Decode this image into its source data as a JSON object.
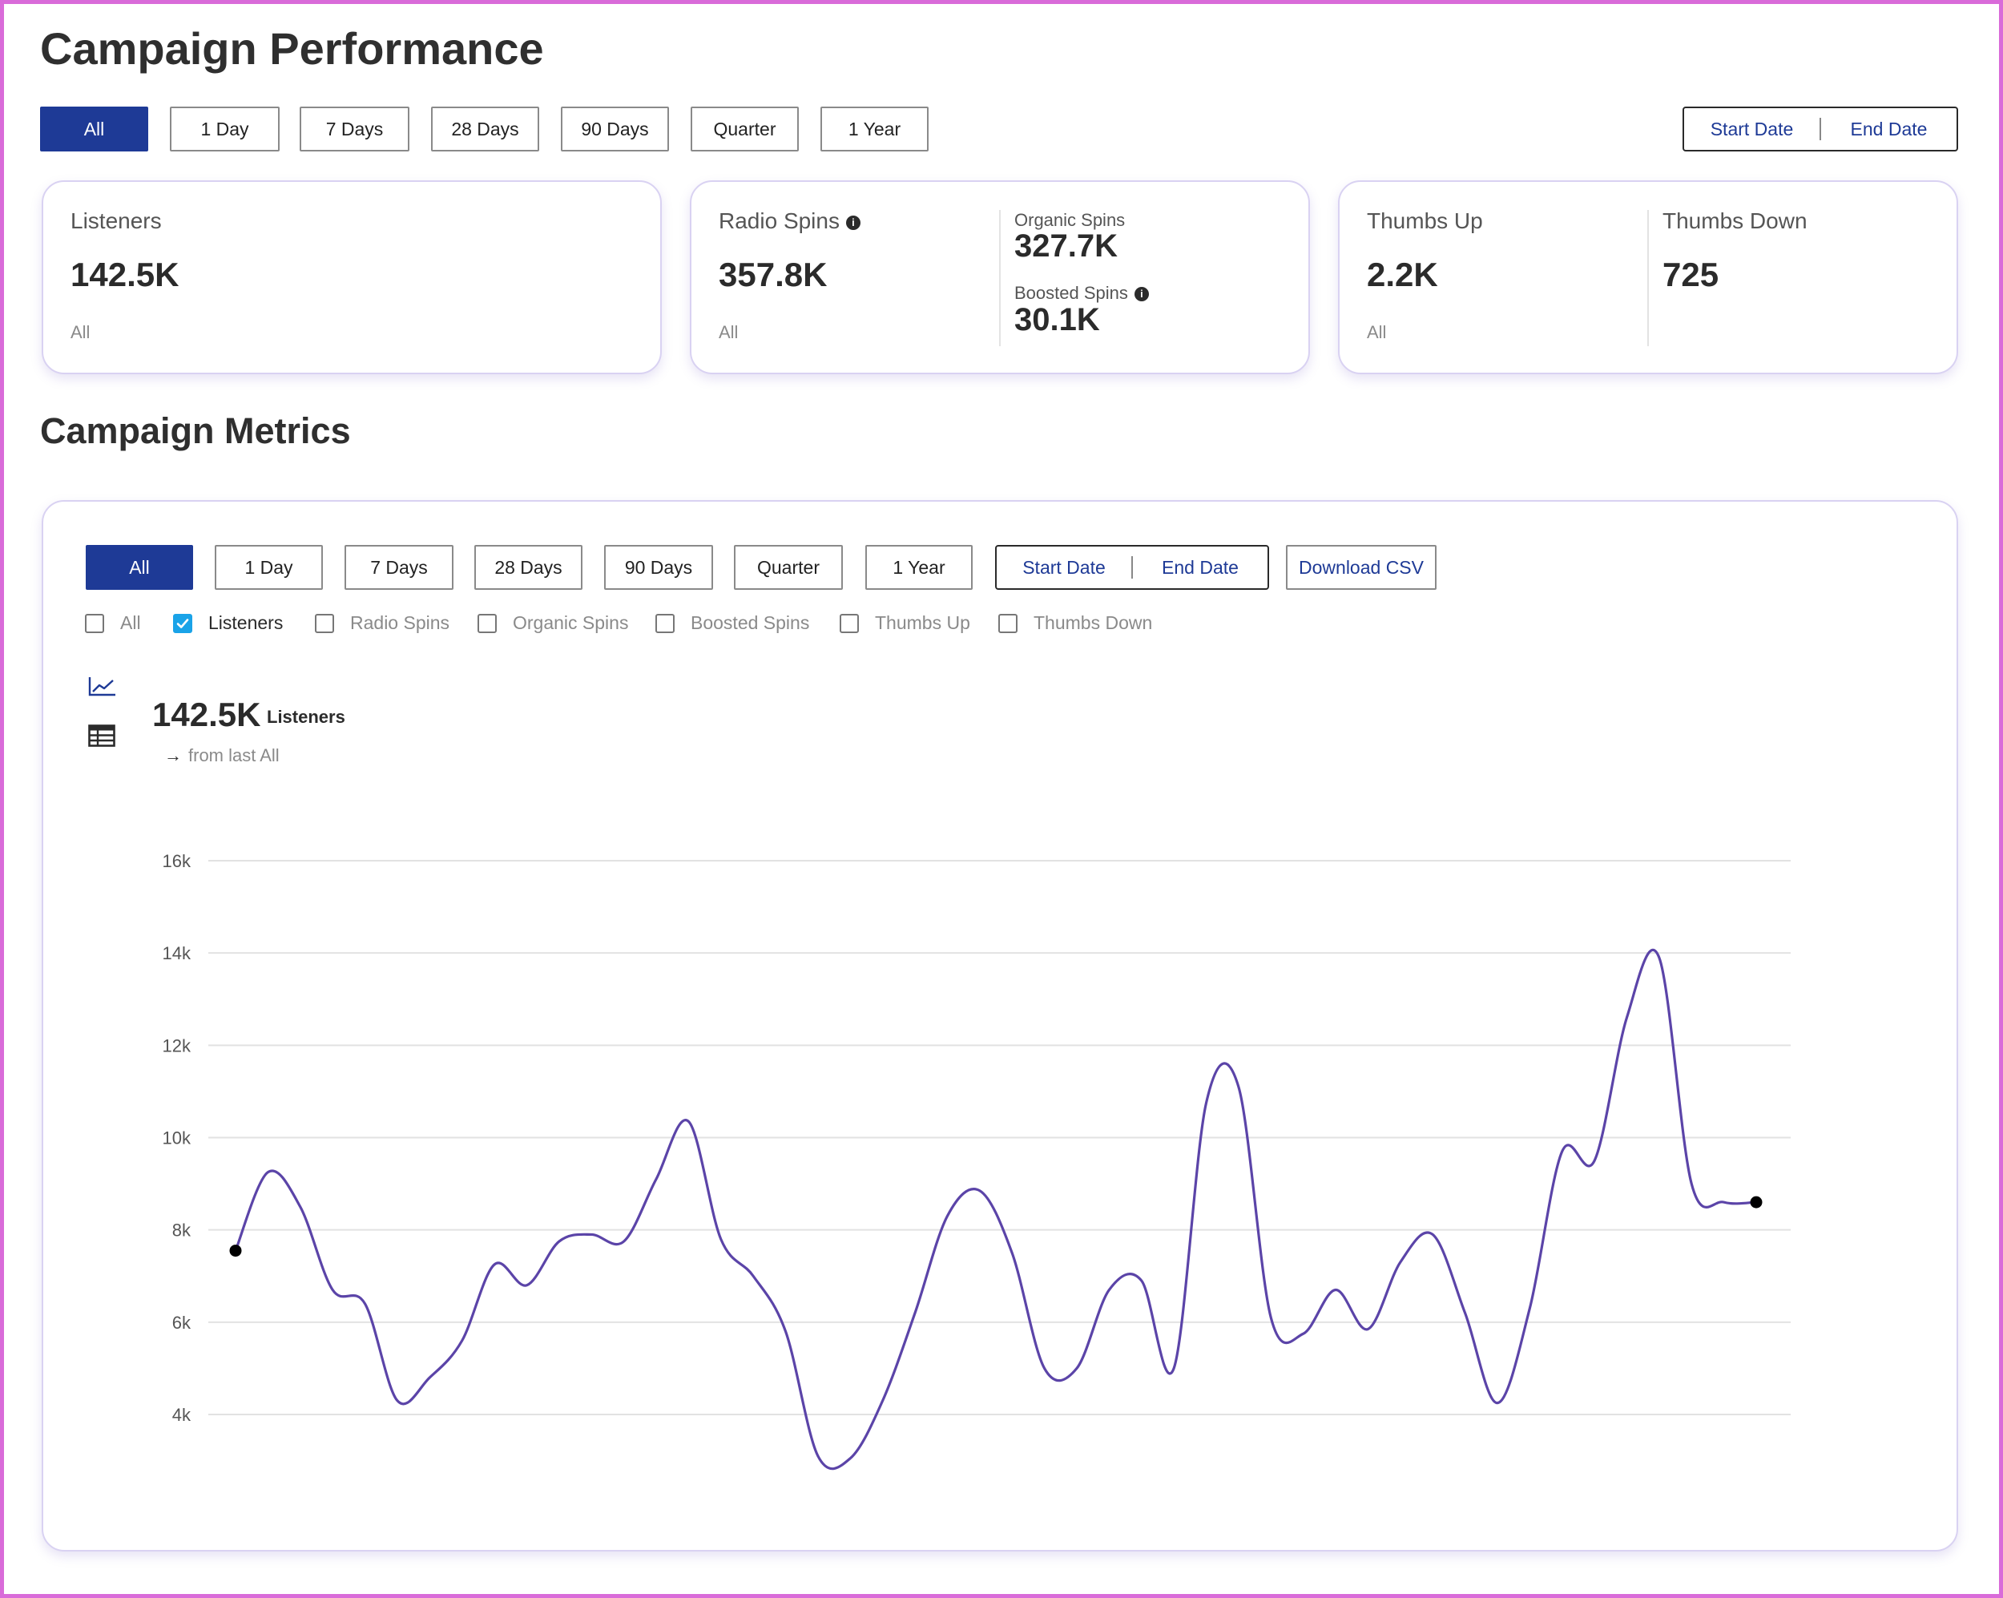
{
  "page_title": "Campaign Performance",
  "ranges": [
    "All",
    "1 Day",
    "7 Days",
    "28 Days",
    "90 Days",
    "Quarter",
    "1 Year"
  ],
  "date_range": {
    "start": "Start Date",
    "end": "End Date"
  },
  "cards": {
    "listeners": {
      "label": "Listeners",
      "value": "142.5K",
      "period": "All"
    },
    "radio_spins": {
      "label": "Radio Spins",
      "value": "357.8K",
      "period": "All",
      "organic_label": "Organic Spins",
      "organic_value": "327.7K",
      "boosted_label": "Boosted Spins",
      "boosted_value": "30.1K"
    },
    "thumbs": {
      "up_label": "Thumbs Up",
      "up_value": "2.2K",
      "period": "All",
      "down_label": "Thumbs Down",
      "down_value": "725"
    }
  },
  "section_title": "Campaign Metrics",
  "metrics": {
    "download_label": "Download CSV",
    "filters": [
      {
        "label": "All",
        "checked": false
      },
      {
        "label": "Listeners",
        "checked": true
      },
      {
        "label": "Radio Spins",
        "checked": false
      },
      {
        "label": "Organic Spins",
        "checked": false
      },
      {
        "label": "Boosted Spins",
        "checked": false
      },
      {
        "label": "Thumbs Up",
        "checked": false
      },
      {
        "label": "Thumbs Down",
        "checked": false
      }
    ],
    "value": "142.5K",
    "metric_name": "Listeners",
    "trend_text": "from last All",
    "icons": {
      "line_view": "line-chart-icon",
      "table_view": "table-icon",
      "trend": "arrow-right-icon"
    }
  },
  "colors": {
    "accent": "#1e3a96",
    "line": "#5b44a8",
    "checkbox": "#1aa3e8"
  },
  "chart_data": {
    "type": "line",
    "series": [
      {
        "values": [
          7550,
          9250,
          8500,
          6700,
          6400,
          4300,
          4800,
          5600,
          7250,
          6800,
          7750,
          7900,
          7750,
          9100,
          10350,
          7800,
          7000,
          5800,
          3100,
          3050,
          4300,
          6200,
          8300,
          8850,
          7500,
          5000,
          5000,
          6700,
          6900,
          5000,
          10750,
          11100,
          6100,
          5750,
          6700,
          5850,
          7300,
          7900,
          6200,
          4250,
          6300,
          9700,
          9500,
          12600,
          13900,
          9000,
          8600,
          8600
        ]
      }
    ],
    "yticks": [
      "16k",
      "14k",
      "12k",
      "10k",
      "8k",
      "6k",
      "4k"
    ],
    "ylim": [
      3000,
      16000
    ],
    "grid": true,
    "endpoint_markers": true
  }
}
